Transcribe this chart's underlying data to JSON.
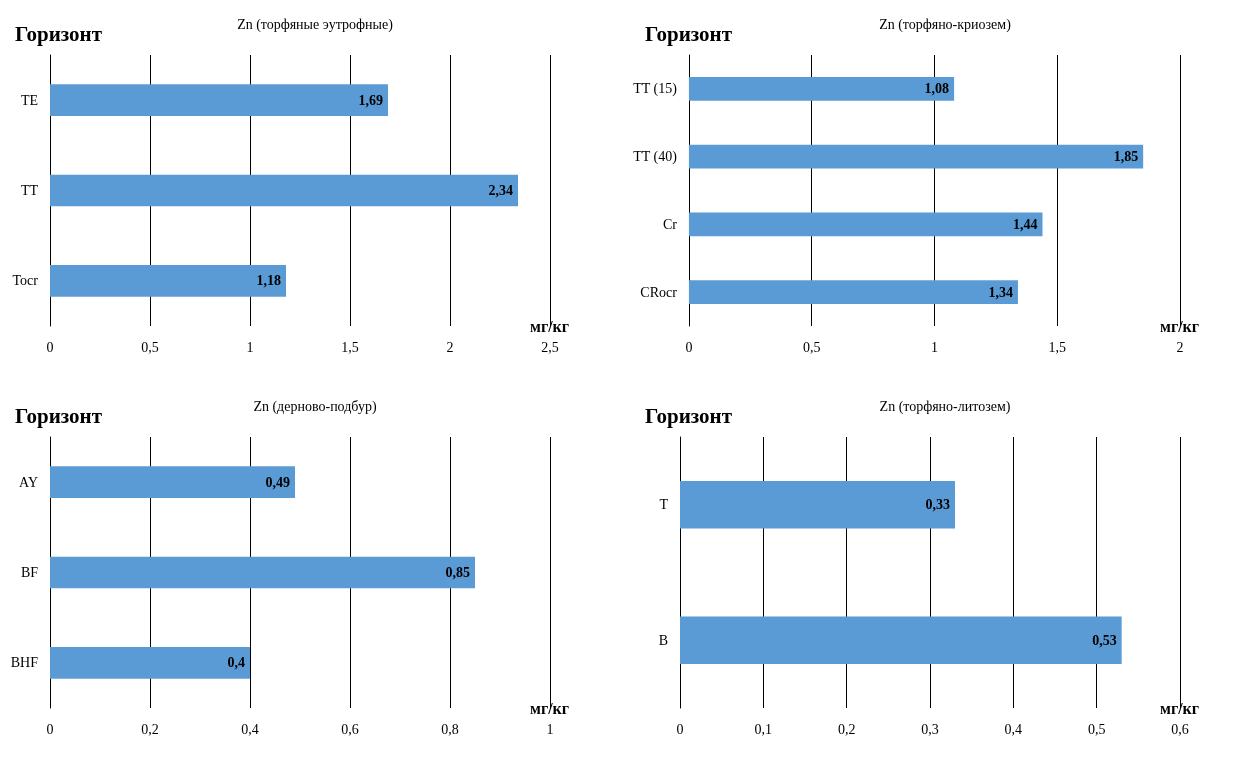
{
  "chart_data": [
    {
      "type": "bar",
      "orientation": "horizontal",
      "title": "Zn (торфяные эутрофные)",
      "ylabel": "Горизонт",
      "xlabel": "мг/кг",
      "categories": [
        "TE",
        "TT",
        "Tocr"
      ],
      "values": [
        1.69,
        2.34,
        1.18
      ],
      "value_labels": [
        "1,69",
        "2,34",
        "1,18"
      ],
      "color": "#5b9bd5",
      "xlim": [
        0,
        2.5
      ],
      "xticks": [
        0,
        {
          "value": 0.5,
          "label": "0,5"
        },
        1,
        {
          "value": 1.5,
          "label": "1,5"
        },
        2,
        {
          "value": 2.5,
          "label": "2,5"
        }
      ],
      "grid": "x"
    },
    {
      "type": "bar",
      "orientation": "horizontal",
      "title": "Zn (торфяно-криозем)",
      "ylabel": "Горизонт",
      "xlabel": "мг/кг",
      "categories": [
        "TT (15)",
        "TT (40)",
        "Cr",
        "CRocr"
      ],
      "values": [
        1.08,
        1.85,
        1.44,
        1.34
      ],
      "value_labels": [
        "1,08",
        "1,85",
        "1,44",
        "1,34"
      ],
      "color": "#5b9bd5",
      "xlim": [
        0,
        2
      ],
      "xticks": [
        0,
        {
          "value": 0.5,
          "label": "0,5"
        },
        1,
        {
          "value": 1.5,
          "label": "1,5"
        },
        2
      ],
      "grid": "x"
    },
    {
      "type": "bar",
      "orientation": "horizontal",
      "title": "Zn (дерново-подбур)",
      "ylabel": "Горизонт",
      "xlabel": "мг/кг",
      "categories": [
        "AY",
        "BF",
        "BHF"
      ],
      "values": [
        0.49,
        0.85,
        0.4
      ],
      "value_labels": [
        "0,49",
        "0,85",
        "0,4"
      ],
      "color": "#5b9bd5",
      "xlim": [
        0,
        1
      ],
      "xticks": [
        0,
        {
          "value": 0.2,
          "label": "0,2"
        },
        {
          "value": 0.4,
          "label": "0,4"
        },
        {
          "value": 0.6,
          "label": "0,6"
        },
        {
          "value": 0.8,
          "label": "0,8"
        },
        1
      ],
      "grid": "x"
    },
    {
      "type": "bar",
      "orientation": "horizontal",
      "title": "Zn (торфяно-литозем)",
      "ylabel": "Горизонт",
      "xlabel": "мг/кг",
      "categories": [
        "T",
        "B"
      ],
      "values": [
        0.33,
        0.53
      ],
      "value_labels": [
        "0,33",
        "0,53"
      ],
      "color": "#5b9bd5",
      "xlim": [
        0,
        0.6
      ],
      "xticks": [
        0,
        {
          "value": 0.1,
          "label": "0,1"
        },
        {
          "value": 0.2,
          "label": "0,2"
        },
        {
          "value": 0.3,
          "label": "0,3"
        },
        {
          "value": 0.4,
          "label": "0,4"
        },
        {
          "value": 0.5,
          "label": "0,5"
        },
        {
          "value": 0.6,
          "label": "0,6"
        }
      ],
      "grid": "x"
    }
  ]
}
